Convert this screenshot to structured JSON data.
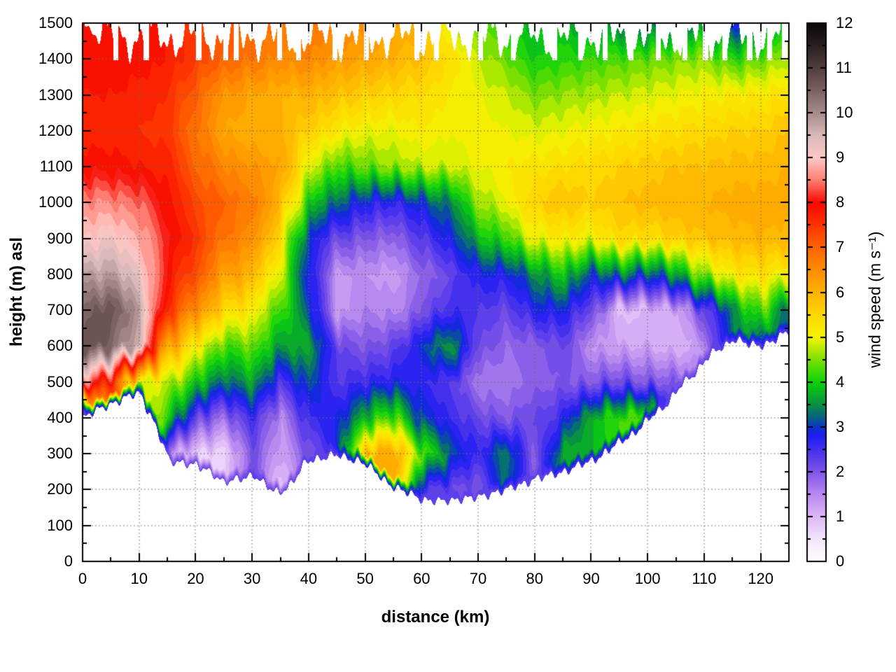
{
  "figure": {
    "background": "#ffffff",
    "border_color": "#000000",
    "grid_style": "dotted-major",
    "grid_color": "#777777"
  },
  "chart_data": {
    "type": "heatmap",
    "subtype": "filled-contour-cross-section",
    "title": "",
    "xlabel": "distance (km)",
    "ylabel": "height (m) asl",
    "colorbar_label": "wind speed (m s⁻¹)",
    "x_range": [
      0,
      125
    ],
    "y_range": [
      0,
      1500
    ],
    "color_range": [
      0,
      12
    ],
    "x_ticks": [
      0,
      10,
      20,
      30,
      40,
      50,
      60,
      70,
      80,
      90,
      100,
      110,
      120
    ],
    "x_minor_step": 5,
    "y_ticks": [
      0,
      100,
      200,
      300,
      400,
      500,
      600,
      700,
      800,
      900,
      1000,
      1100,
      1200,
      1300,
      1400,
      1500
    ],
    "y_minor_step": 50,
    "cb_ticks": [
      0,
      1,
      2,
      3,
      4,
      5,
      6,
      7,
      8,
      9,
      10,
      11,
      12
    ],
    "cb_minor_step": 0.5,
    "legend_position": "right-colorbar",
    "palette": [
      {
        "v": 0.0,
        "c": "#ffffff"
      },
      {
        "v": 0.5,
        "c": "#f3e6fb"
      },
      {
        "v": 1.0,
        "c": "#ddb8f6"
      },
      {
        "v": 1.5,
        "c": "#b78aef"
      },
      {
        "v": 2.0,
        "c": "#8055e8"
      },
      {
        "v": 2.5,
        "c": "#4530ee"
      },
      {
        "v": 2.8,
        "c": "#1d1df2"
      },
      {
        "v": 3.0,
        "c": "#0b35c8"
      },
      {
        "v": 3.2,
        "c": "#075e86"
      },
      {
        "v": 3.5,
        "c": "#089140"
      },
      {
        "v": 4.0,
        "c": "#0bd20b"
      },
      {
        "v": 4.5,
        "c": "#7be000"
      },
      {
        "v": 5.0,
        "c": "#f4f400"
      },
      {
        "v": 5.5,
        "c": "#ffd800"
      },
      {
        "v": 6.0,
        "c": "#ffb300"
      },
      {
        "v": 6.5,
        "c": "#ff8d00"
      },
      {
        "v": 7.0,
        "c": "#ff6400"
      },
      {
        "v": 7.5,
        "c": "#ff3400"
      },
      {
        "v": 8.0,
        "c": "#f80800"
      },
      {
        "v": 8.5,
        "c": "#ff7d70"
      },
      {
        "v": 9.0,
        "c": "#ffc9c6"
      },
      {
        "v": 9.5,
        "c": "#d9b9b9"
      },
      {
        "v": 10.0,
        "c": "#a78c8c"
      },
      {
        "v": 10.5,
        "c": "#7c6262"
      },
      {
        "v": 11.0,
        "c": "#513e3e"
      },
      {
        "v": 11.5,
        "c": "#2b2121"
      },
      {
        "v": 12.0,
        "c": "#0a0707"
      }
    ],
    "distances_km": [
      0,
      5,
      10,
      15,
      20,
      25,
      30,
      35,
      40,
      45,
      50,
      55,
      60,
      65,
      70,
      75,
      80,
      85,
      90,
      95,
      100,
      105,
      110,
      115,
      120,
      125
    ],
    "heights_m": [
      0,
      100,
      200,
      300,
      400,
      500,
      600,
      700,
      800,
      900,
      1000,
      1100,
      1200,
      1300,
      1400,
      1500
    ],
    "data_base_height_m": [
      400,
      440,
      470,
      280,
      270,
      220,
      240,
      190,
      280,
      300,
      270,
      210,
      170,
      170,
      180,
      200,
      230,
      250,
      280,
      330,
      390,
      470,
      560,
      620,
      600,
      640
    ],
    "top_gap_slits_km": [
      5.8,
      11.2,
      20.5,
      25.3,
      27.1,
      34.8,
      38.2,
      44.6,
      50.2,
      59.1,
      62.6,
      70.4,
      76.2,
      83.5,
      88.1,
      92.4,
      97.0,
      101.8,
      106.5,
      110.2,
      113.6,
      118.0,
      121.5,
      124.2
    ],
    "wind_speed_ms": [
      [
        null,
        null,
        null,
        null,
        2.5,
        8.5,
        10.8,
        10.5,
        9.8,
        9.0,
        8.6,
        7.9,
        7.7,
        7.8,
        7.9,
        8.0
      ],
      [
        null,
        null,
        null,
        null,
        null,
        7.5,
        10.5,
        10.8,
        9.8,
        9.2,
        8.6,
        7.9,
        7.7,
        7.8,
        8.0,
        8.0
      ],
      [
        null,
        null,
        null,
        null,
        null,
        5.0,
        9.5,
        9.8,
        9.3,
        8.8,
        8.4,
        7.8,
        7.6,
        7.7,
        7.9,
        7.9
      ],
      [
        null,
        null,
        null,
        1.5,
        4.2,
        4.8,
        6.2,
        7.5,
        7.9,
        8.1,
        7.9,
        7.7,
        7.5,
        7.6,
        7.8,
        7.8
      ],
      [
        null,
        null,
        null,
        0.8,
        2.2,
        4.0,
        5.2,
        6.5,
        7.2,
        7.5,
        7.3,
        7.0,
        6.8,
        7.0,
        7.4,
        7.4
      ],
      [
        null,
        null,
        null,
        0.6,
        1.8,
        3.2,
        4.2,
        5.5,
        6.3,
        6.8,
        7.0,
        6.6,
        6.2,
        6.4,
        7.0,
        7.2
      ],
      [
        null,
        null,
        null,
        2.2,
        2.6,
        3.6,
        4.4,
        5.2,
        6.0,
        6.5,
        6.7,
        6.4,
        6.0,
        6.2,
        6.8,
        7.0
      ],
      [
        null,
        null,
        0.8,
        1.2,
        1.4,
        2.4,
        3.6,
        4.2,
        4.8,
        5.4,
        6.0,
        6.2,
        6.0,
        6.0,
        6.5,
        6.8
      ],
      [
        null,
        null,
        null,
        2.0,
        2.6,
        3.2,
        3.8,
        3.2,
        2.8,
        2.9,
        4.0,
        5.0,
        5.6,
        6.0,
        6.6,
        6.9
      ],
      [
        null,
        null,
        null,
        null,
        2.8,
        2.4,
        2.2,
        1.2,
        1.4,
        2.2,
        3.2,
        4.2,
        5.2,
        5.8,
        6.3,
        6.6
      ],
      [
        null,
        null,
        null,
        6.0,
        3.8,
        2.6,
        2.0,
        1.6,
        1.4,
        2.0,
        2.8,
        4.4,
        5.0,
        5.6,
        6.2,
        6.5
      ],
      [
        null,
        null,
        null,
        6.2,
        4.4,
        2.8,
        2.2,
        1.5,
        1.3,
        1.8,
        2.6,
        4.6,
        5.0,
        5.5,
        6.0,
        6.3
      ],
      [
        null,
        null,
        2.5,
        4.5,
        3.0,
        2.6,
        3.0,
        2.0,
        1.8,
        2.4,
        3.0,
        4.8,
        5.2,
        5.4,
        5.8,
        6.0
      ],
      [
        null,
        null,
        2.2,
        3.2,
        2.6,
        2.4,
        3.6,
        2.6,
        2.2,
        2.8,
        3.4,
        4.8,
        5.0,
        5.2,
        5.4,
        4.8
      ],
      [
        null,
        null,
        2.0,
        2.6,
        2.2,
        1.6,
        2.2,
        2.4,
        2.8,
        3.8,
        4.6,
        5.0,
        5.2,
        5.0,
        4.8,
        4.4
      ],
      [
        null,
        null,
        null,
        3.4,
        2.0,
        1.6,
        1.8,
        2.2,
        2.8,
        4.2,
        5.0,
        5.2,
        5.0,
        4.8,
        4.4,
        4.0
      ],
      [
        null,
        null,
        null,
        1.8,
        2.2,
        1.9,
        1.9,
        2.8,
        3.4,
        5.0,
        5.6,
        5.3,
        4.9,
        4.5,
        4.0,
        3.7
      ],
      [
        null,
        null,
        null,
        3.8,
        2.6,
        2.0,
        2.2,
        2.8,
        4.0,
        5.2,
        5.8,
        5.4,
        5.0,
        4.6,
        4.1,
        3.8
      ],
      [
        null,
        null,
        null,
        null,
        3.8,
        2.0,
        1.4,
        2.2,
        3.0,
        5.0,
        5.6,
        5.5,
        5.1,
        4.7,
        4.2,
        3.6
      ],
      [
        null,
        null,
        null,
        null,
        4.2,
        2.2,
        1.2,
        0.9,
        3.4,
        5.5,
        5.8,
        5.6,
        5.2,
        4.8,
        4.3,
        3.4
      ],
      [
        null,
        null,
        null,
        null,
        4.5,
        2.0,
        1.2,
        1.0,
        3.0,
        5.4,
        5.9,
        5.7,
        5.3,
        4.9,
        4.4,
        3.2
      ],
      [
        null,
        null,
        null,
        null,
        null,
        2.0,
        1.0,
        1.2,
        3.6,
        5.6,
        6.0,
        5.8,
        5.4,
        5.0,
        4.5,
        3.4
      ],
      [
        null,
        null,
        null,
        null,
        null,
        null,
        1.4,
        2.2,
        4.6,
        5.8,
        6.0,
        5.8,
        5.5,
        5.1,
        4.6,
        3.6
      ],
      [
        null,
        null,
        null,
        null,
        null,
        null,
        null,
        3.4,
        5.2,
        5.9,
        6.1,
        5.9,
        5.6,
        5.2,
        4.2,
        2.9
      ],
      [
        null,
        null,
        null,
        null,
        null,
        null,
        3.0,
        4.4,
        5.4,
        6.0,
        6.1,
        5.9,
        5.6,
        5.2,
        4.4,
        3.2
      ],
      [
        null,
        null,
        null,
        null,
        null,
        null,
        null,
        3.2,
        5.0,
        5.9,
        6.1,
        6.0,
        5.8,
        5.4,
        4.8,
        4.2
      ]
    ]
  }
}
